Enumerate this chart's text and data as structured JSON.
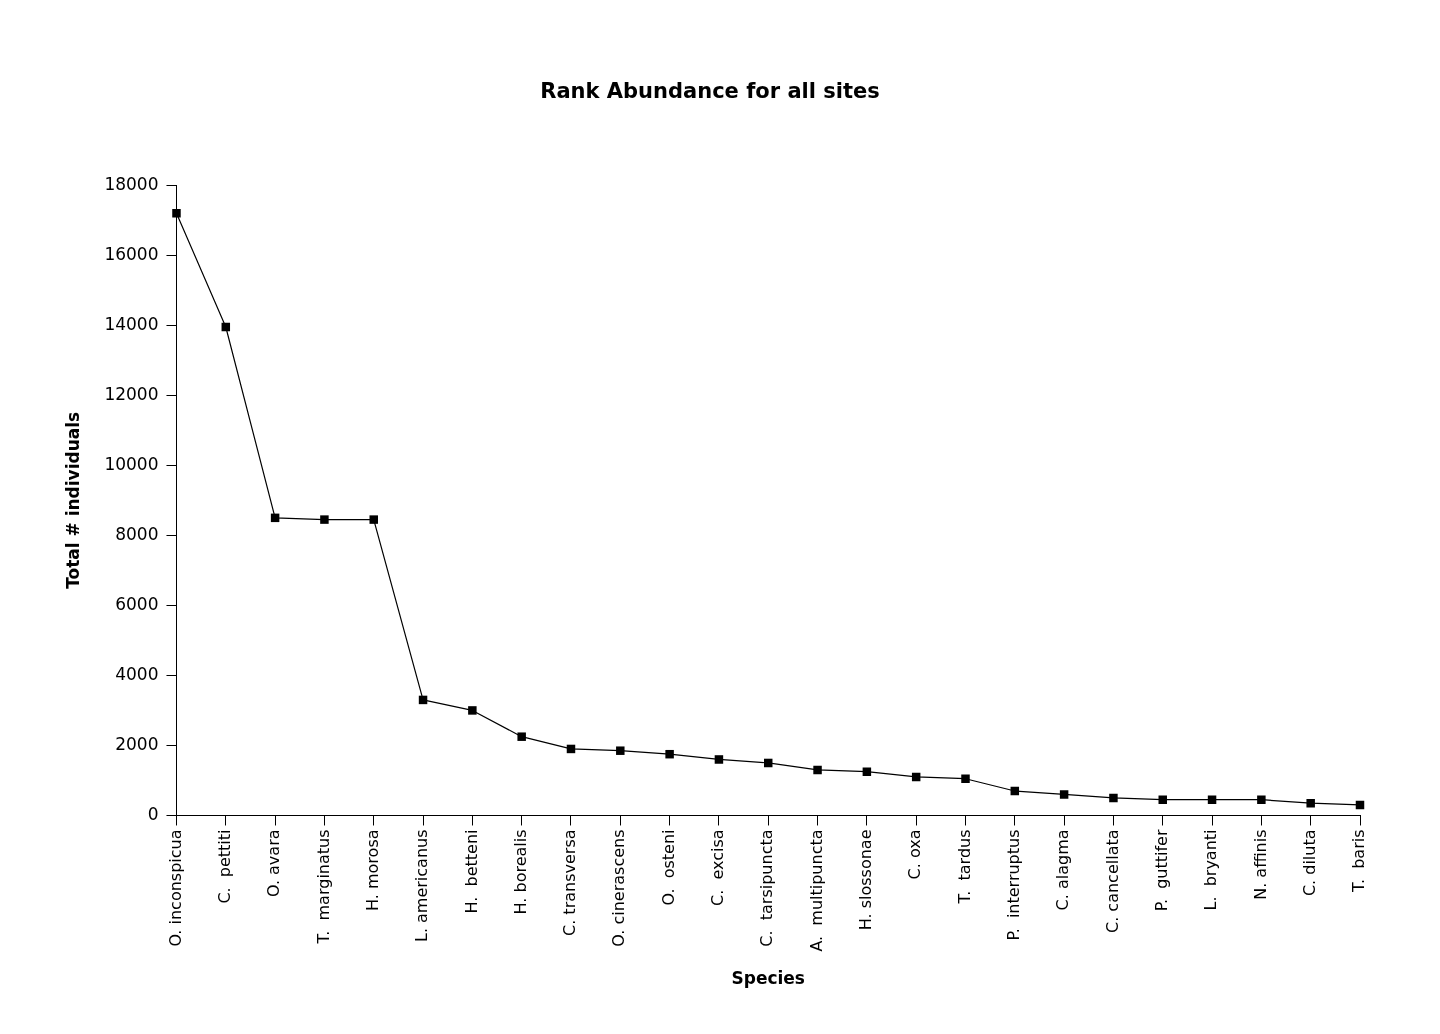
{
  "chart_data": {
    "type": "line",
    "title": "Rank Abundance for all sites",
    "xlabel": "Species",
    "ylabel": "Total # individuals",
    "categories": [
      "O. inconspicua",
      "C.  pettiti",
      "O. avara",
      "T.  marginatus",
      "H. morosa",
      "L. americanus",
      "H.  betteni",
      "H. borealis",
      "C. transversa",
      "O. cinerascens",
      "O.  osteni",
      "C.  excisa",
      "C.  tarsipuncta",
      "A.  multipuncta",
      "H. slossonae",
      "C. oxa",
      "T.  tardus",
      "P.  interruptus",
      "C. alagma",
      "C. cancellata",
      "P.  guttifer",
      "L.  bryanti",
      "N. affinis",
      "C. diluta",
      "T.  baris"
    ],
    "series": [
      {
        "color": "#000000",
        "values": [
          17200,
          13950,
          8500,
          8450,
          8450,
          3300,
          3000,
          2250,
          1900,
          1850,
          1750,
          1600,
          1500,
          1300,
          1250,
          1100,
          1050,
          700,
          600,
          500,
          450,
          450,
          450,
          350,
          300
        ]
      }
    ],
    "ylim": [
      0,
      18000
    ],
    "yticks": [
      0,
      2000,
      4000,
      6000,
      8000,
      10000,
      12000,
      14000,
      16000,
      18000
    ],
    "grid": false,
    "legend": false,
    "marker": "square",
    "line_style": "solid"
  }
}
